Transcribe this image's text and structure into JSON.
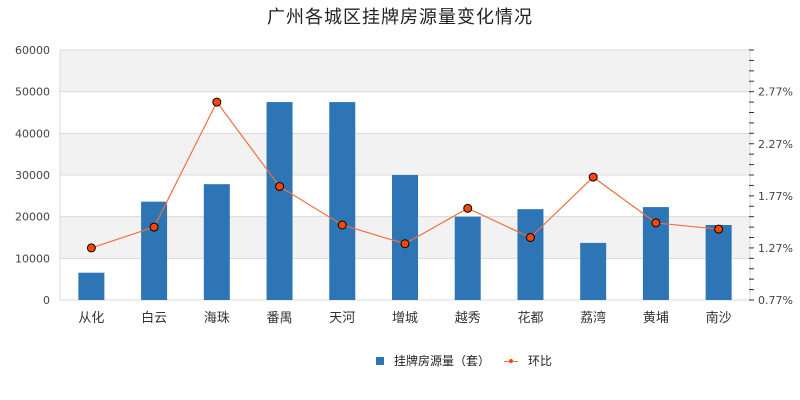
{
  "chart_data": {
    "type": "bar+line",
    "title": "广州各城区挂牌房源量变化情况",
    "categories": [
      "从化",
      "白云",
      "海珠",
      "番禺",
      "天河",
      "增城",
      "越秀",
      "花都",
      "荔湾",
      "黄埔",
      "南沙"
    ],
    "series": [
      {
        "name": "挂牌房源量（套）",
        "type": "bar",
        "axis": "left",
        "color": "#2e75b6",
        "values": [
          6550,
          23600,
          27800,
          47500,
          47500,
          30000,
          20000,
          21800,
          13700,
          22300,
          18000
        ]
      },
      {
        "name": "环比",
        "type": "line",
        "axis": "right",
        "color": "#f07040",
        "marker_fill": "#ff4500",
        "values": [
          1.27,
          1.47,
          2.67,
          1.86,
          1.49,
          1.31,
          1.65,
          1.37,
          1.95,
          1.51,
          1.45
        ]
      }
    ],
    "left_axis": {
      "min": 0,
      "max": 60000,
      "ticks": [
        "0",
        "10000",
        "20000",
        "30000",
        "40000",
        "50000",
        "60000"
      ]
    },
    "right_axis": {
      "min": 0.77,
      "max": 3.17,
      "ticks": [
        "0.77%",
        "1.27%",
        "1.77%",
        "2.27%",
        "2.77%"
      ],
      "tick_values": [
        0.77,
        1.27,
        1.77,
        2.27,
        2.77
      ]
    },
    "xlabel": "",
    "ylabel": "",
    "grid": true,
    "legend_position": "bottom"
  },
  "legend": {
    "bar_label": "挂牌房源量（套）",
    "line_label": "环比"
  }
}
